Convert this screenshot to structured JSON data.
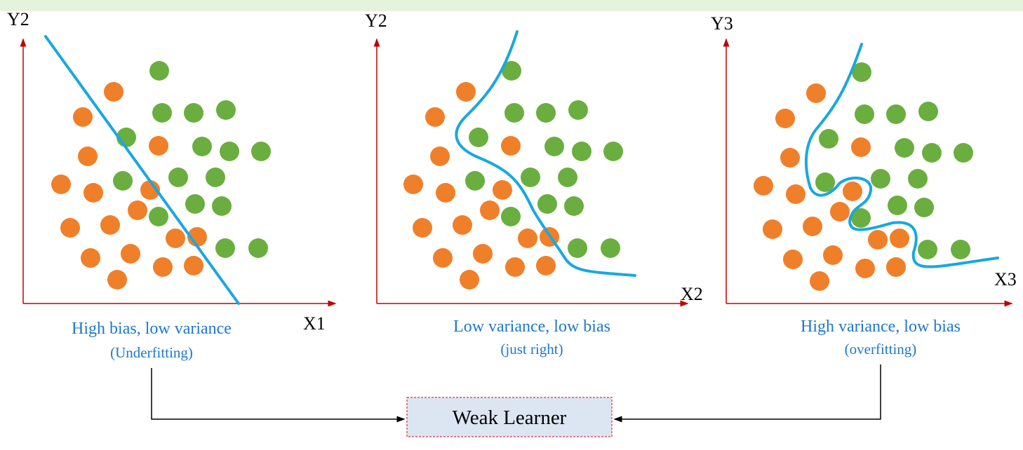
{
  "panels": [
    {
      "y_label": "Y2",
      "x_label": "X1",
      "caption": "High bias, low variance",
      "note": "(Underfitting)"
    },
    {
      "y_label": "Y2",
      "x_label": "X2",
      "caption": "Low variance, low bias",
      "note": "(just right)"
    },
    {
      "y_label": "Y3",
      "x_label": "X3",
      "caption": "High variance, low bias",
      "note": "(overfitting)"
    }
  ],
  "learner": "Weak Learner"
}
